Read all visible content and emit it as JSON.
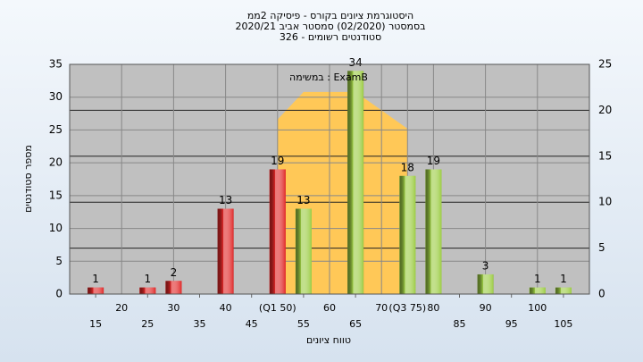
{
  "chart_data": {
    "type": "bar",
    "title_lines": [
      "היסטוגרמת ציונים בקורס - פיסיקה 2ממ",
      "בסמסטר  (02/2020)  סמסטר אביב 2020/21",
      "סטודנטים רשומים - 326"
    ],
    "annotation": "במשימה : ExamB",
    "x_label": "טווח ציונים",
    "y_label": "מספר סטודנטים",
    "x": [
      15,
      25,
      30,
      40,
      50,
      55,
      65,
      75,
      80,
      90,
      100,
      105
    ],
    "values": [
      1,
      1,
      2,
      13,
      19,
      13,
      34,
      18,
      19,
      3,
      1,
      1
    ],
    "colors": [
      "#e02828",
      "#e02828",
      "#e02828",
      "#e02828",
      "#e02828",
      "#9ccc44",
      "#9ccc44",
      "#9ccc44",
      "#9ccc44",
      "#9ccc44",
      "#9ccc44",
      "#9ccc44"
    ],
    "area": {
      "x": [
        50,
        55,
        65,
        70,
        75
      ],
      "values": [
        19,
        22,
        22,
        20,
        18
      ],
      "color": "#ffc857",
      "axis": "y2"
    },
    "xlim": [
      10,
      110
    ],
    "xticks": [
      20,
      30,
      40,
      {
        "value": 50,
        "label": "(Q1 50)"
      },
      60,
      70,
      {
        "value": 75,
        "label": "(Q3 75)"
      },
      80,
      90,
      100
    ],
    "xticks2": [
      15,
      25,
      35,
      45,
      55,
      65,
      85,
      95,
      105
    ],
    "ylim": [
      0,
      35
    ],
    "yticks": [
      0,
      5,
      10,
      15,
      20,
      25,
      30,
      35
    ],
    "y2lim": [
      0,
      25
    ],
    "y2ticks": [
      0,
      5,
      10,
      15,
      20,
      25
    ],
    "grid": true
  }
}
